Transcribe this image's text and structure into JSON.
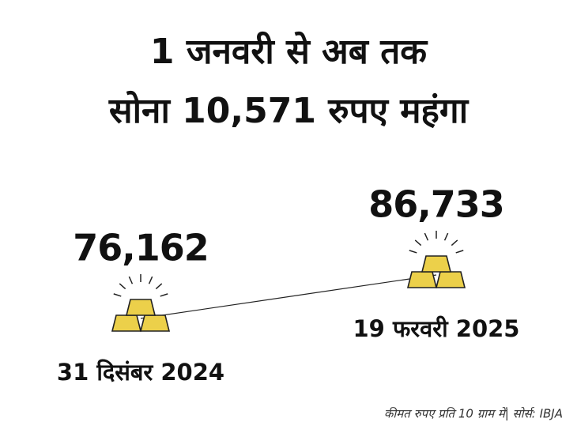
{
  "chart_data": {
    "type": "line",
    "title": "1 जनवरी से अब तक",
    "subtitle": "सोना 10,571 रुपए महंगा",
    "categories": [
      "31 दिसंबर 2024",
      "19 फरवरी 2025"
    ],
    "values": [
      76162,
      86733
    ],
    "value_labels": [
      "76,162",
      "86,733"
    ],
    "color": "#222222",
    "icon_color": "#ecd04a",
    "note": "कीमत रुपए प्रति 10 ग्राम में| सोर्स: IBJA"
  }
}
